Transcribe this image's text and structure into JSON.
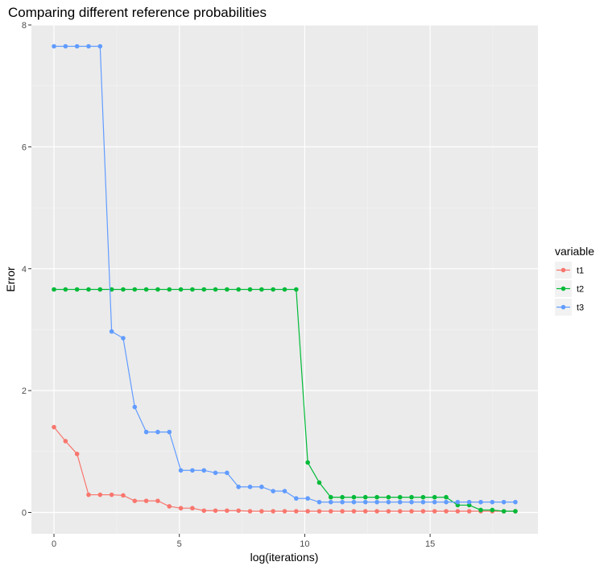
{
  "chart_data": {
    "type": "line",
    "title": "Comparing different reference probabilities",
    "xlabel": "log(iterations)",
    "ylabel": "Error",
    "xlim": [
      -0.9,
      19.3
    ],
    "ylim": [
      -0.35,
      8.0
    ],
    "xticks": [
      0,
      5,
      10,
      15
    ],
    "yticks": [
      0,
      2,
      4,
      6,
      8
    ],
    "grid": true,
    "legend": {
      "title": "variable",
      "position": "right"
    },
    "series": [
      {
        "name": "t1",
        "color": "#F8766D",
        "x": [
          0,
          0.46,
          0.92,
          1.38,
          1.84,
          2.3,
          2.76,
          3.22,
          3.68,
          4.14,
          4.6,
          5.06,
          5.52,
          5.98,
          6.44,
          6.9,
          7.36,
          7.82,
          8.28,
          8.74,
          9.2,
          9.66,
          10.12,
          10.58,
          11.04,
          11.5,
          11.96,
          12.42,
          12.88,
          13.34,
          13.8,
          14.26,
          14.72,
          15.18,
          15.64,
          16.1,
          16.56,
          17.02,
          17.48,
          17.94,
          18.4
        ],
        "y": [
          1.4,
          1.17,
          0.96,
          0.29,
          0.29,
          0.29,
          0.28,
          0.19,
          0.19,
          0.19,
          0.1,
          0.07,
          0.07,
          0.03,
          0.03,
          0.03,
          0.03,
          0.02,
          0.02,
          0.02,
          0.02,
          0.02,
          0.02,
          0.02,
          0.02,
          0.02,
          0.02,
          0.02,
          0.02,
          0.02,
          0.02,
          0.02,
          0.02,
          0.02,
          0.02,
          0.02,
          0.02,
          0.02,
          0.02,
          0.02,
          0.02
        ]
      },
      {
        "name": "t2",
        "color": "#00BA38",
        "x": [
          0,
          0.46,
          0.92,
          1.38,
          1.84,
          2.3,
          2.76,
          3.22,
          3.68,
          4.14,
          4.6,
          5.06,
          5.52,
          5.98,
          6.44,
          6.9,
          7.36,
          7.82,
          8.28,
          8.74,
          9.2,
          9.66,
          10.12,
          10.58,
          11.04,
          11.5,
          11.96,
          12.42,
          12.88,
          13.34,
          13.8,
          14.26,
          14.72,
          15.18,
          15.64,
          16.1,
          16.56,
          17.02,
          17.48,
          17.94,
          18.4
        ],
        "y": [
          3.66,
          3.66,
          3.66,
          3.66,
          3.66,
          3.66,
          3.66,
          3.66,
          3.66,
          3.66,
          3.66,
          3.66,
          3.66,
          3.66,
          3.66,
          3.66,
          3.66,
          3.66,
          3.66,
          3.66,
          3.66,
          3.66,
          0.82,
          0.49,
          0.25,
          0.25,
          0.25,
          0.25,
          0.25,
          0.25,
          0.25,
          0.25,
          0.25,
          0.25,
          0.25,
          0.12,
          0.12,
          0.04,
          0.04,
          0.02,
          0.02
        ]
      },
      {
        "name": "t3",
        "color": "#619CFF",
        "x": [
          0,
          0.46,
          0.92,
          1.38,
          1.84,
          2.3,
          2.76,
          3.22,
          3.68,
          4.14,
          4.6,
          5.06,
          5.52,
          5.98,
          6.44,
          6.9,
          7.36,
          7.82,
          8.28,
          8.74,
          9.2,
          9.66,
          10.12,
          10.58,
          11.04,
          11.5,
          11.96,
          12.42,
          12.88,
          13.34,
          13.8,
          14.26,
          14.72,
          15.18,
          15.64,
          16.1,
          16.56,
          17.02,
          17.48,
          17.94,
          18.4
        ],
        "y": [
          7.65,
          7.65,
          7.65,
          7.65,
          7.65,
          2.97,
          2.86,
          1.73,
          1.32,
          1.32,
          1.32,
          0.69,
          0.69,
          0.69,
          0.65,
          0.65,
          0.42,
          0.42,
          0.42,
          0.35,
          0.35,
          0.23,
          0.23,
          0.17,
          0.17,
          0.17,
          0.17,
          0.17,
          0.17,
          0.17,
          0.17,
          0.17,
          0.17,
          0.17,
          0.17,
          0.17,
          0.17,
          0.17,
          0.17,
          0.17,
          0.17
        ]
      }
    ]
  },
  "colors": {
    "panel_background": "#EBEBEB",
    "grid_major": "#FFFFFF",
    "grid_minor": "#F4F4F4"
  }
}
